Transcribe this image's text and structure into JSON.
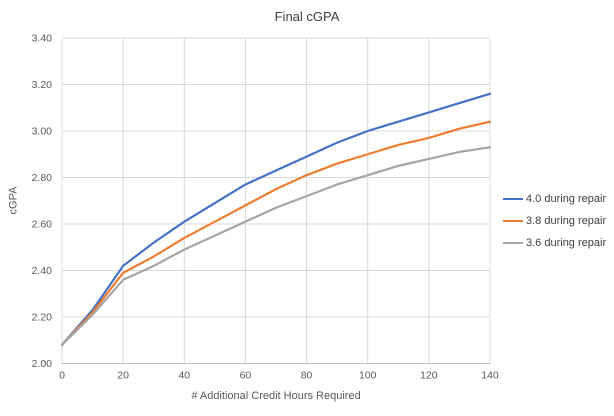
{
  "chart_data": {
    "type": "line",
    "title": "Final cGPA",
    "xlabel": "# Additional Credit Hours Required",
    "ylabel": "cGPA",
    "xlim": [
      0,
      140
    ],
    "ylim": [
      2.0,
      3.4
    ],
    "x_ticks": [
      0,
      20,
      40,
      60,
      80,
      100,
      120,
      140
    ],
    "y_ticks": [
      "2.00",
      "2.20",
      "2.40",
      "2.60",
      "2.80",
      "3.00",
      "3.20",
      "3.40"
    ],
    "grid": true,
    "legend_position": "right",
    "x": [
      0,
      10,
      20,
      30,
      40,
      50,
      60,
      70,
      80,
      90,
      100,
      110,
      120,
      130,
      140
    ],
    "series": [
      {
        "name": "4.0 during repair",
        "color": "#4472C4",
        "values": [
          2.08,
          2.23,
          2.42,
          2.52,
          2.61,
          2.69,
          2.77,
          2.83,
          2.89,
          2.95,
          3.0,
          3.04,
          3.08,
          3.12,
          3.16
        ]
      },
      {
        "name": "3.8 during repair",
        "color": "#ED7D31",
        "values": [
          2.08,
          2.22,
          2.39,
          2.46,
          2.54,
          2.61,
          2.68,
          2.75,
          2.81,
          2.86,
          2.9,
          2.94,
          2.97,
          3.01,
          3.04
        ]
      },
      {
        "name": "3.6 during repair",
        "color": "#A5A5A5",
        "values": [
          2.08,
          2.21,
          2.36,
          2.42,
          2.49,
          2.55,
          2.61,
          2.67,
          2.72,
          2.77,
          2.81,
          2.85,
          2.88,
          2.91,
          2.93
        ]
      }
    ],
    "colors": {
      "gridline": "#D9D9D9",
      "axis_line": "#BFBFBF",
      "tick_text": "#595959",
      "title_text": "#404040"
    }
  }
}
